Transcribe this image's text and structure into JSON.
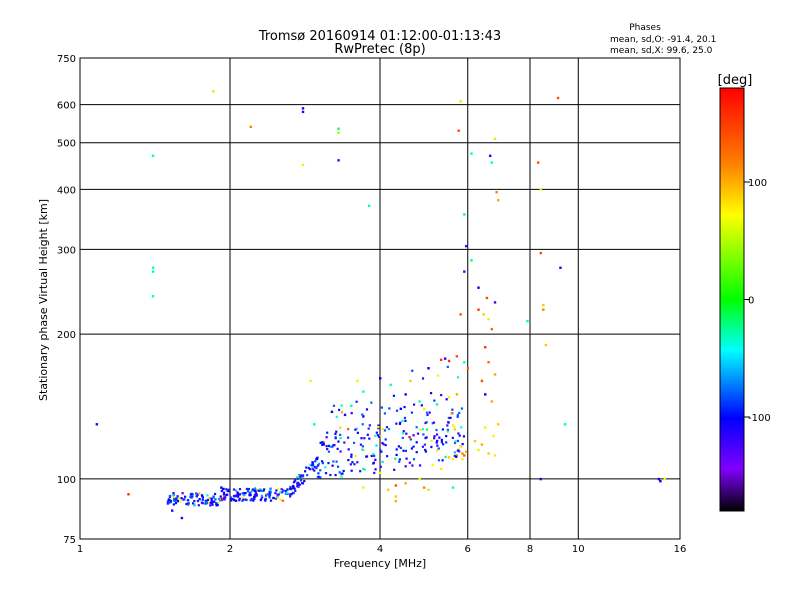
{
  "chart_data": {
    "type": "scatter",
    "title": "Tromsø 20160914 01:12:00-01:13:43",
    "subtitle": "RwPretec (8p)",
    "xlabel": "Frequency [MHz]",
    "ylabel": "Stationary phase Virtual Height [km]",
    "x_scale": "log",
    "y_scale": "log",
    "xlim": [
      1,
      16
    ],
    "ylim": [
      75,
      750
    ],
    "x_ticks": [
      1,
      2,
      4,
      6,
      8,
      10,
      16
    ],
    "y_ticks": [
      75,
      100,
      200,
      300,
      400,
      500,
      600,
      750
    ],
    "grid": true,
    "stats": {
      "title": "Phases",
      "line_o": "mean, sd,O: -91.4, 20.1",
      "line_x": "mean, sd,X:  99.6, 25.0"
    },
    "colorbar": {
      "label": "[deg]",
      "range": [
        -180,
        180
      ],
      "ticks": [
        100,
        0,
        -100
      ]
    },
    "points": [
      [
        1.08,
        130,
        -95
      ],
      [
        1.25,
        93,
        160
      ],
      [
        1.4,
        470,
        -30
      ],
      [
        1.4,
        275,
        -30
      ],
      [
        1.4,
        270,
        -30
      ],
      [
        1.4,
        240,
        -30
      ],
      [
        1.5,
        89,
        -110
      ],
      [
        1.52,
        90,
        -110
      ],
      [
        1.55,
        91,
        -105
      ],
      [
        1.53,
        86,
        -110
      ],
      [
        1.57,
        90,
        -100
      ],
      [
        1.6,
        83,
        -110
      ],
      [
        1.85,
        640,
        70
      ],
      [
        2.2,
        540,
        130
      ],
      [
        2.8,
        590,
        -110
      ],
      [
        2.8,
        580,
        -110
      ],
      [
        2.8,
        450,
        100
      ],
      [
        3.3,
        535,
        -20
      ],
      [
        3.3,
        525,
        60
      ],
      [
        3.3,
        460,
        -120
      ],
      [
        3.8,
        370,
        -30
      ],
      [
        5.75,
        530,
        150
      ],
      [
        5.8,
        610,
        70
      ],
      [
        5.9,
        355,
        -20
      ],
      [
        5.95,
        305,
        -130
      ],
      [
        5.9,
        270,
        -120
      ],
      [
        6.1,
        475,
        -30
      ],
      [
        6.1,
        285,
        -20
      ],
      [
        6.65,
        470,
        -110
      ],
      [
        6.7,
        455,
        -30
      ],
      [
        6.8,
        510,
        70
      ],
      [
        6.85,
        395,
        130
      ],
      [
        6.9,
        380,
        120
      ],
      [
        8.3,
        455,
        150
      ],
      [
        8.4,
        400,
        100
      ],
      [
        8.4,
        295,
        150
      ],
      [
        8.5,
        230,
        110
      ],
      [
        8.5,
        225,
        130
      ],
      [
        8.6,
        190,
        110
      ],
      [
        8.4,
        100,
        -110
      ],
      [
        9.1,
        620,
        150
      ],
      [
        9.2,
        275,
        -110
      ],
      [
        9.4,
        130,
        -30
      ],
      [
        7.9,
        213,
        -30
      ],
      [
        6.3,
        250,
        -100
      ],
      [
        6.55,
        238,
        150
      ],
      [
        6.8,
        233,
        -120
      ],
      [
        6.3,
        225,
        160
      ],
      [
        6.45,
        220,
        110
      ],
      [
        6.6,
        215,
        80
      ],
      [
        6.7,
        205,
        140
      ],
      [
        5.8,
        220,
        150
      ],
      [
        6.5,
        188,
        160
      ],
      [
        6.6,
        175,
        140
      ],
      [
        6.4,
        160,
        150
      ],
      [
        6.8,
        165,
        120
      ],
      [
        6.5,
        150,
        -100
      ],
      [
        6.7,
        145,
        120
      ],
      [
        6.9,
        130,
        110
      ],
      [
        6.5,
        128,
        100
      ],
      [
        6.75,
        123,
        100
      ],
      [
        6.2,
        120,
        110
      ],
      [
        6.4,
        118,
        120
      ],
      [
        6.3,
        115,
        80
      ],
      [
        6.6,
        113,
        110
      ],
      [
        6.8,
        112,
        100
      ],
      [
        14.5,
        100,
        -110
      ],
      [
        14.6,
        99,
        -100
      ],
      [
        14.9,
        100,
        90
      ],
      [
        3.7,
        96,
        100
      ],
      [
        4.3,
        92,
        110
      ],
      [
        4.3,
        97,
        150
      ],
      [
        4.8,
        100,
        100
      ],
      [
        4.5,
        98,
        120
      ],
      [
        4.9,
        96,
        130
      ],
      [
        5.0,
        95,
        70
      ],
      [
        5.6,
        96,
        -30
      ],
      [
        3.7,
        105,
        -30
      ],
      [
        4.0,
        103,
        100
      ],
      [
        4.15,
        95,
        110
      ],
      [
        4.3,
        90,
        120
      ],
      [
        1.92,
        96,
        -100
      ],
      [
        2.4,
        94,
        -110
      ],
      [
        2.9,
        160,
        100
      ],
      [
        3.6,
        160,
        100
      ],
      [
        3.7,
        152,
        -30
      ],
      [
        4.0,
        162,
        -100
      ],
      [
        4.2,
        157,
        -30
      ],
      [
        4.6,
        160,
        110
      ],
      [
        5.0,
        170,
        -100
      ],
      [
        5.3,
        177,
        160
      ],
      [
        5.4,
        178,
        -110
      ],
      [
        5.5,
        176,
        160
      ],
      [
        5.7,
        180,
        150
      ],
      [
        5.9,
        175,
        -30
      ],
      [
        6.0,
        170,
        140
      ],
      [
        5.2,
        143,
        -30
      ],
      [
        5.5,
        148,
        100
      ],
      [
        5.7,
        150,
        120
      ],
      [
        4.4,
        140,
        -100
      ],
      [
        4.5,
        150,
        -110
      ],
      [
        4.8,
        145,
        -30
      ],
      [
        4.9,
        140,
        100
      ],
      [
        3.2,
        138,
        -100
      ],
      [
        3.4,
        136,
        -110
      ],
      [
        3.5,
        142,
        -30
      ],
      [
        3.7,
        135,
        -110
      ],
      [
        2.95,
        130,
        -30
      ],
      [
        5.75,
        115,
        120
      ],
      [
        5.85,
        113,
        130
      ],
      [
        5.95,
        114,
        120
      ],
      [
        5.8,
        117,
        110
      ],
      [
        5.85,
        110,
        100
      ],
      [
        5.9,
        112,
        140
      ],
      [
        5.7,
        112,
        130
      ],
      [
        5.6,
        110,
        100
      ],
      [
        5.5,
        111,
        110
      ],
      [
        5.3,
        105,
        100
      ],
      [
        5.1,
        107,
        90
      ]
    ]
  },
  "colors": {
    "grid": "#000000",
    "colorbar_stops": [
      "#ff0000",
      "#ff8000",
      "#ffff00",
      "#00ff00",
      "#00ffff",
      "#0000ff",
      "#8000ff",
      "#000000"
    ]
  }
}
